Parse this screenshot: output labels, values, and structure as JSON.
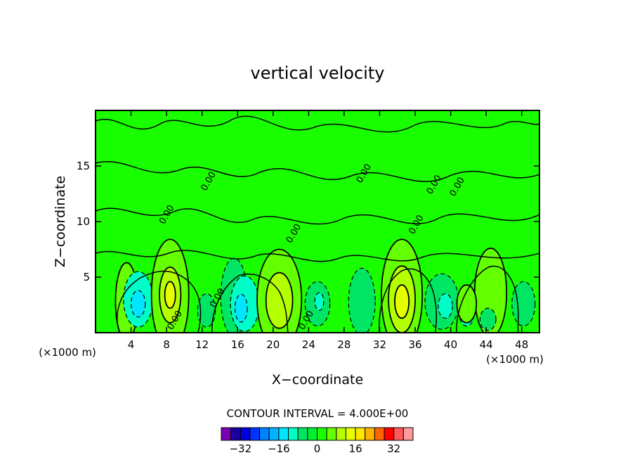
{
  "chart_data": {
    "type": "heatmap",
    "title": "vertical velocity",
    "xlabel": "X−coordinate",
    "ylabel": "Z−coordinate",
    "x_unit_label": "(×1000 m)",
    "z_unit_label": "(×1000 m)",
    "xlim": [
      0,
      50
    ],
    "ylim": [
      0,
      20
    ],
    "x_ticks": [
      4,
      8,
      12,
      16,
      20,
      24,
      28,
      32,
      36,
      40,
      44,
      48
    ],
    "y_ticks": [
      5,
      10,
      15
    ],
    "contour_interval_text": "CONTOUR INTERVAL = 4.000E+00",
    "contour_interval": 4,
    "contour_line_label": "0.00",
    "colorbar": {
      "levels": [
        -40,
        -36,
        -32,
        -28,
        -24,
        -20,
        -16,
        -12,
        -8,
        -4,
        0,
        4,
        8,
        12,
        16,
        20,
        24,
        28,
        32,
        36,
        40
      ],
      "tick_values": [
        -32,
        -16,
        0,
        16,
        32
      ],
      "tick_labels": [
        "−32",
        "−16",
        "0",
        "16",
        "32"
      ],
      "colors": [
        "#7a00b4",
        "#1a00a0",
        "#0000d8",
        "#0032ff",
        "#0082ff",
        "#00b4ff",
        "#00e6ff",
        "#00ffc8",
        "#00e664",
        "#00f032",
        "#1aff00",
        "#64ff00",
        "#b4ff00",
        "#e6ff00",
        "#ffe600",
        "#ffb400",
        "#ff6400",
        "#ff0000",
        "#ff5a5a",
        "#ff9a9a"
      ]
    },
    "background_color": "#1aff00",
    "cells": [
      {
        "x": 3.5,
        "z": 2.8,
        "w": 2.5,
        "h": 7,
        "value": 4
      },
      {
        "x": 4.8,
        "z": 3.0,
        "w": 3.3,
        "h": 5,
        "value": -8
      },
      {
        "x": 4.8,
        "z": 2.6,
        "w": 1.6,
        "h": 2.4,
        "value": -12
      },
      {
        "x": 8.4,
        "z": 3.4,
        "w": 4.2,
        "h": 10,
        "value": 4
      },
      {
        "x": 8.4,
        "z": 3.4,
        "w": 2.4,
        "h": 5,
        "value": 8
      },
      {
        "x": 8.4,
        "z": 3.4,
        "w": 1.2,
        "h": 2.4,
        "value": 12
      },
      {
        "x": 12.5,
        "z": 2.0,
        "w": 2.0,
        "h": 3,
        "value": -4
      },
      {
        "x": 15.6,
        "z": 3.2,
        "w": 3.0,
        "h": 7,
        "value": -4
      },
      {
        "x": 16.8,
        "z": 2.6,
        "w": 3.2,
        "h": 5,
        "value": -8
      },
      {
        "x": 16.4,
        "z": 2.2,
        "w": 1.4,
        "h": 2.5,
        "value": -12
      },
      {
        "x": 20.7,
        "z": 3.0,
        "w": 5.0,
        "h": 9,
        "value": 4
      },
      {
        "x": 20.7,
        "z": 2.9,
        "w": 3.0,
        "h": 5,
        "value": 8
      },
      {
        "x": 25.0,
        "z": 2.6,
        "w": 2.8,
        "h": 4,
        "value": -4
      },
      {
        "x": 25.2,
        "z": 2.8,
        "w": 1.0,
        "h": 1.6,
        "value": -8
      },
      {
        "x": 30.0,
        "z": 2.8,
        "w": 3.0,
        "h": 6,
        "value": -4
      },
      {
        "x": 34.5,
        "z": 3.4,
        "w": 4.6,
        "h": 10,
        "value": 4
      },
      {
        "x": 34.5,
        "z": 3.0,
        "w": 3.0,
        "h": 6,
        "value": 8
      },
      {
        "x": 34.5,
        "z": 2.8,
        "w": 1.6,
        "h": 3,
        "value": 12
      },
      {
        "x": 39.0,
        "z": 2.8,
        "w": 3.8,
        "h": 5,
        "value": -4
      },
      {
        "x": 39.4,
        "z": 2.4,
        "w": 1.6,
        "h": 2.2,
        "value": -8
      },
      {
        "x": 41.8,
        "z": 1.6,
        "w": 1.6,
        "h": 2.0,
        "value": -8
      },
      {
        "x": 44.5,
        "z": 3.6,
        "w": 3.6,
        "h": 8,
        "value": 4
      },
      {
        "x": 41.8,
        "z": 2.6,
        "w": 2.2,
        "h": 3.4,
        "value": 4
      },
      {
        "x": 44.2,
        "z": 1.2,
        "w": 1.8,
        "h": 2.0,
        "value": -4
      },
      {
        "x": 48.2,
        "z": 2.6,
        "w": 2.6,
        "h": 4,
        "value": -4
      }
    ],
    "line_labels": [
      {
        "x": 8.3,
        "z": 10.5
      },
      {
        "x": 9.2,
        "z": 1.0
      },
      {
        "x": 13.0,
        "z": 13.5
      },
      {
        "x": 22.6,
        "z": 8.8
      },
      {
        "x": 24.0,
        "z": 1.0
      },
      {
        "x": 30.5,
        "z": 14.2
      },
      {
        "x": 36.4,
        "z": 9.6
      },
      {
        "x": 38.4,
        "z": 13.2
      },
      {
        "x": 41.0,
        "z": 13.0
      },
      {
        "x": 14.0,
        "z": 3.0
      }
    ]
  }
}
